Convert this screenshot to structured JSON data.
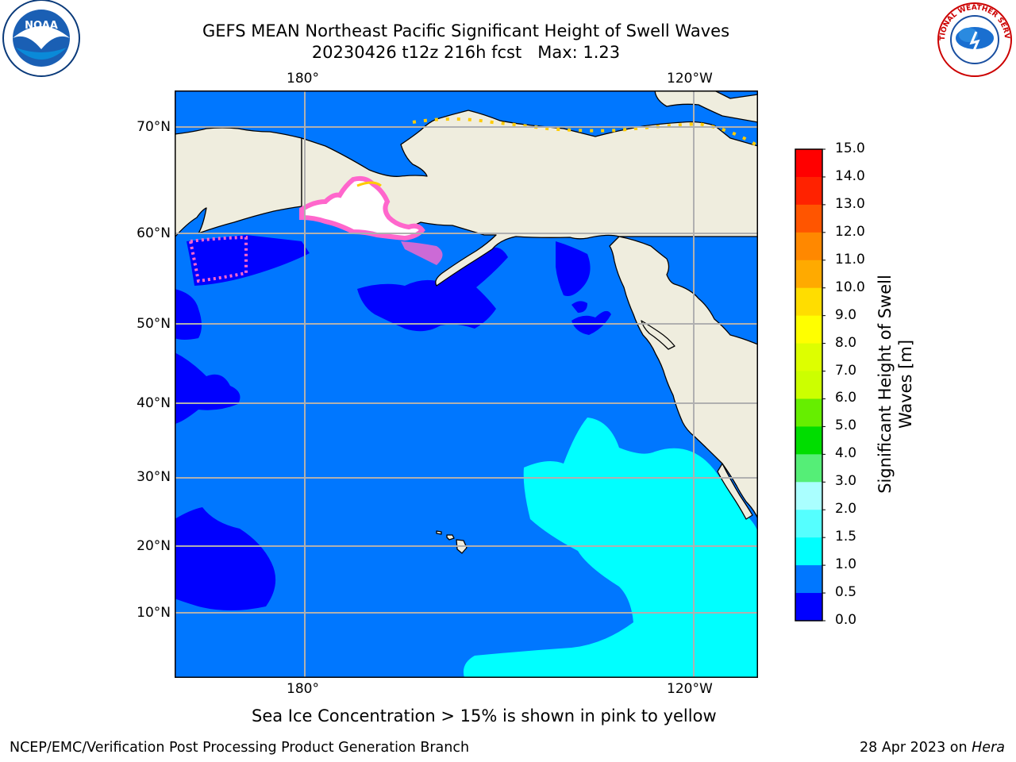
{
  "title": {
    "line1": "GEFS MEAN Northeast Pacific Significant Height of Swell Waves",
    "line2": "20230426 t12z 216h fcst   Max: 1.23"
  },
  "map": {
    "top_lon_labels": [
      "180°",
      "120°W"
    ],
    "bottom_lon_labels": [
      "180°",
      "120°W"
    ],
    "lat_labels": [
      "70°N",
      "60°N",
      "50°N",
      "40°N",
      "30°N",
      "20°N",
      "10°N"
    ],
    "colors": {
      "land": "#efedde",
      "ocean_0_5": "#0000ff",
      "ocean_0_5_1_0": "#0077ff",
      "ocean_1_0_1_5": "#00ffff",
      "grid": "#b0b0b0",
      "ice_pink": "#ff66cc",
      "ice_yellow": "#ffcc00"
    }
  },
  "colorbar": {
    "title_line1": "Significant Height of Swell",
    "title_line2": "Waves [m]",
    "ticks": [
      "15.0",
      "14.0",
      "13.0",
      "12.0",
      "11.0",
      "10.0",
      "9.0",
      "8.0",
      "7.0",
      "6.0",
      "5.0",
      "4.0",
      "3.0",
      "2.0",
      "1.5",
      "1.0",
      "0.5",
      "0.0"
    ],
    "colors": [
      "#ff0000",
      "#ff2200",
      "#ff5500",
      "#ff8800",
      "#ffaa00",
      "#ffdd00",
      "#ffff00",
      "#ddff00",
      "#ccff00",
      "#66ee00",
      "#00dd00",
      "#55ee77",
      "#aaffff",
      "#55ffff",
      "#00ffff",
      "#0077ff",
      "#0000ff"
    ]
  },
  "note": "Sea Ice Concentration > 15% is shown in pink to yellow",
  "footer": {
    "left": "NCEP/EMC/Verification Post Processing Product Generation Branch",
    "right_date": "28 Apr 2023 on ",
    "right_host": "Hera"
  },
  "logos": {
    "noaa": "NOAA",
    "nws_text": "NATIONAL WEATHER SERVICE"
  }
}
